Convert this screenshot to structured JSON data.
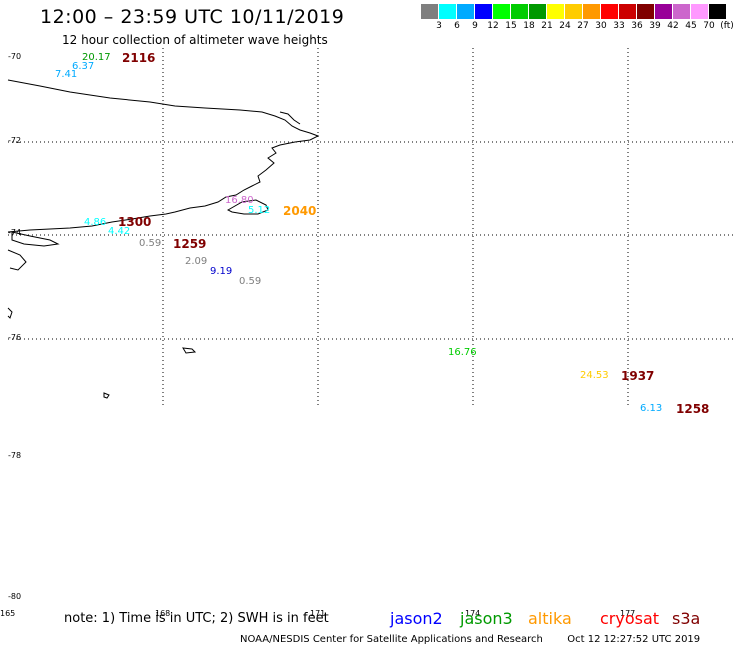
{
  "header": {
    "title": "12:00 – 23:59 UTC 10/11/2019",
    "subtitle": "12 hour collection of altimeter wave heights"
  },
  "scale": {
    "unit": "(ft)",
    "colors": [
      "#7f7f7f",
      "#00ffff",
      "#00aaff",
      "#0000ff",
      "#00ff00",
      "#00cc00",
      "#009900",
      "#ffff00",
      "#ffcc00",
      "#ff9900",
      "#ff0000",
      "#cc0000",
      "#800000",
      "#990099",
      "#cc66cc",
      "#ff99ff",
      "#000000"
    ],
    "ticks": [
      "3",
      "6",
      "9",
      "12",
      "15",
      "18",
      "21",
      "24",
      "27",
      "30",
      "33",
      "36",
      "39",
      "42",
      "45",
      "70"
    ]
  },
  "axes": {
    "lat_labels": [
      "-70",
      "-72",
      "-74",
      "-76",
      "-78",
      "-80"
    ],
    "lon_labels": [
      "165",
      "168",
      "171",
      "174",
      "177"
    ]
  },
  "observations": [
    {
      "text": "20.17",
      "color": "#009900"
    },
    {
      "text": "2116",
      "color": "#800000"
    },
    {
      "text": "6.37",
      "color": "#00aaff"
    },
    {
      "text": "7.41",
      "color": "#00aaff"
    },
    {
      "text": "4.86",
      "color": "#00ffff"
    },
    {
      "text": "1300",
      "color": "#800000"
    },
    {
      "text": "4.42",
      "color": "#00ffff"
    },
    {
      "text": "0.59",
      "color": "#7f7f7f"
    },
    {
      "text": "1259",
      "color": "#800000"
    },
    {
      "text": "2.09",
      "color": "#7f7f7f"
    },
    {
      "text": "9.19",
      "color": "#0000cc"
    },
    {
      "text": "0.59",
      "color": "#7f7f7f"
    },
    {
      "text": "16.80",
      "color": "#cc66cc"
    },
    {
      "text": "5.12",
      "color": "#00ffff"
    },
    {
      "text": "2040",
      "color": "#ff9900"
    },
    {
      "text": "16.76",
      "color": "#00cc00"
    },
    {
      "text": "24.53",
      "color": "#ffcc00"
    },
    {
      "text": "1937",
      "color": "#800000"
    },
    {
      "text": "6.13",
      "color": "#00aaff"
    },
    {
      "text": "1258",
      "color": "#800000"
    }
  ],
  "footer": {
    "note": "note: 1) Time is in UTC; 2) SWH is in feet",
    "legend": [
      {
        "name": "jason2",
        "color": "#0000ff"
      },
      {
        "name": "jason3",
        "color": "#009900"
      },
      {
        "name": "altika",
        "color": "#ff9900"
      },
      {
        "name": "cryosat",
        "color": "#ff0000"
      },
      {
        "name": "s3a",
        "color": "#800000"
      }
    ],
    "credit": "NOAA/NESDIS Center for Satellite Applications and Research",
    "timestamp": "Oct 12 12:27:52 UTC 2019"
  }
}
